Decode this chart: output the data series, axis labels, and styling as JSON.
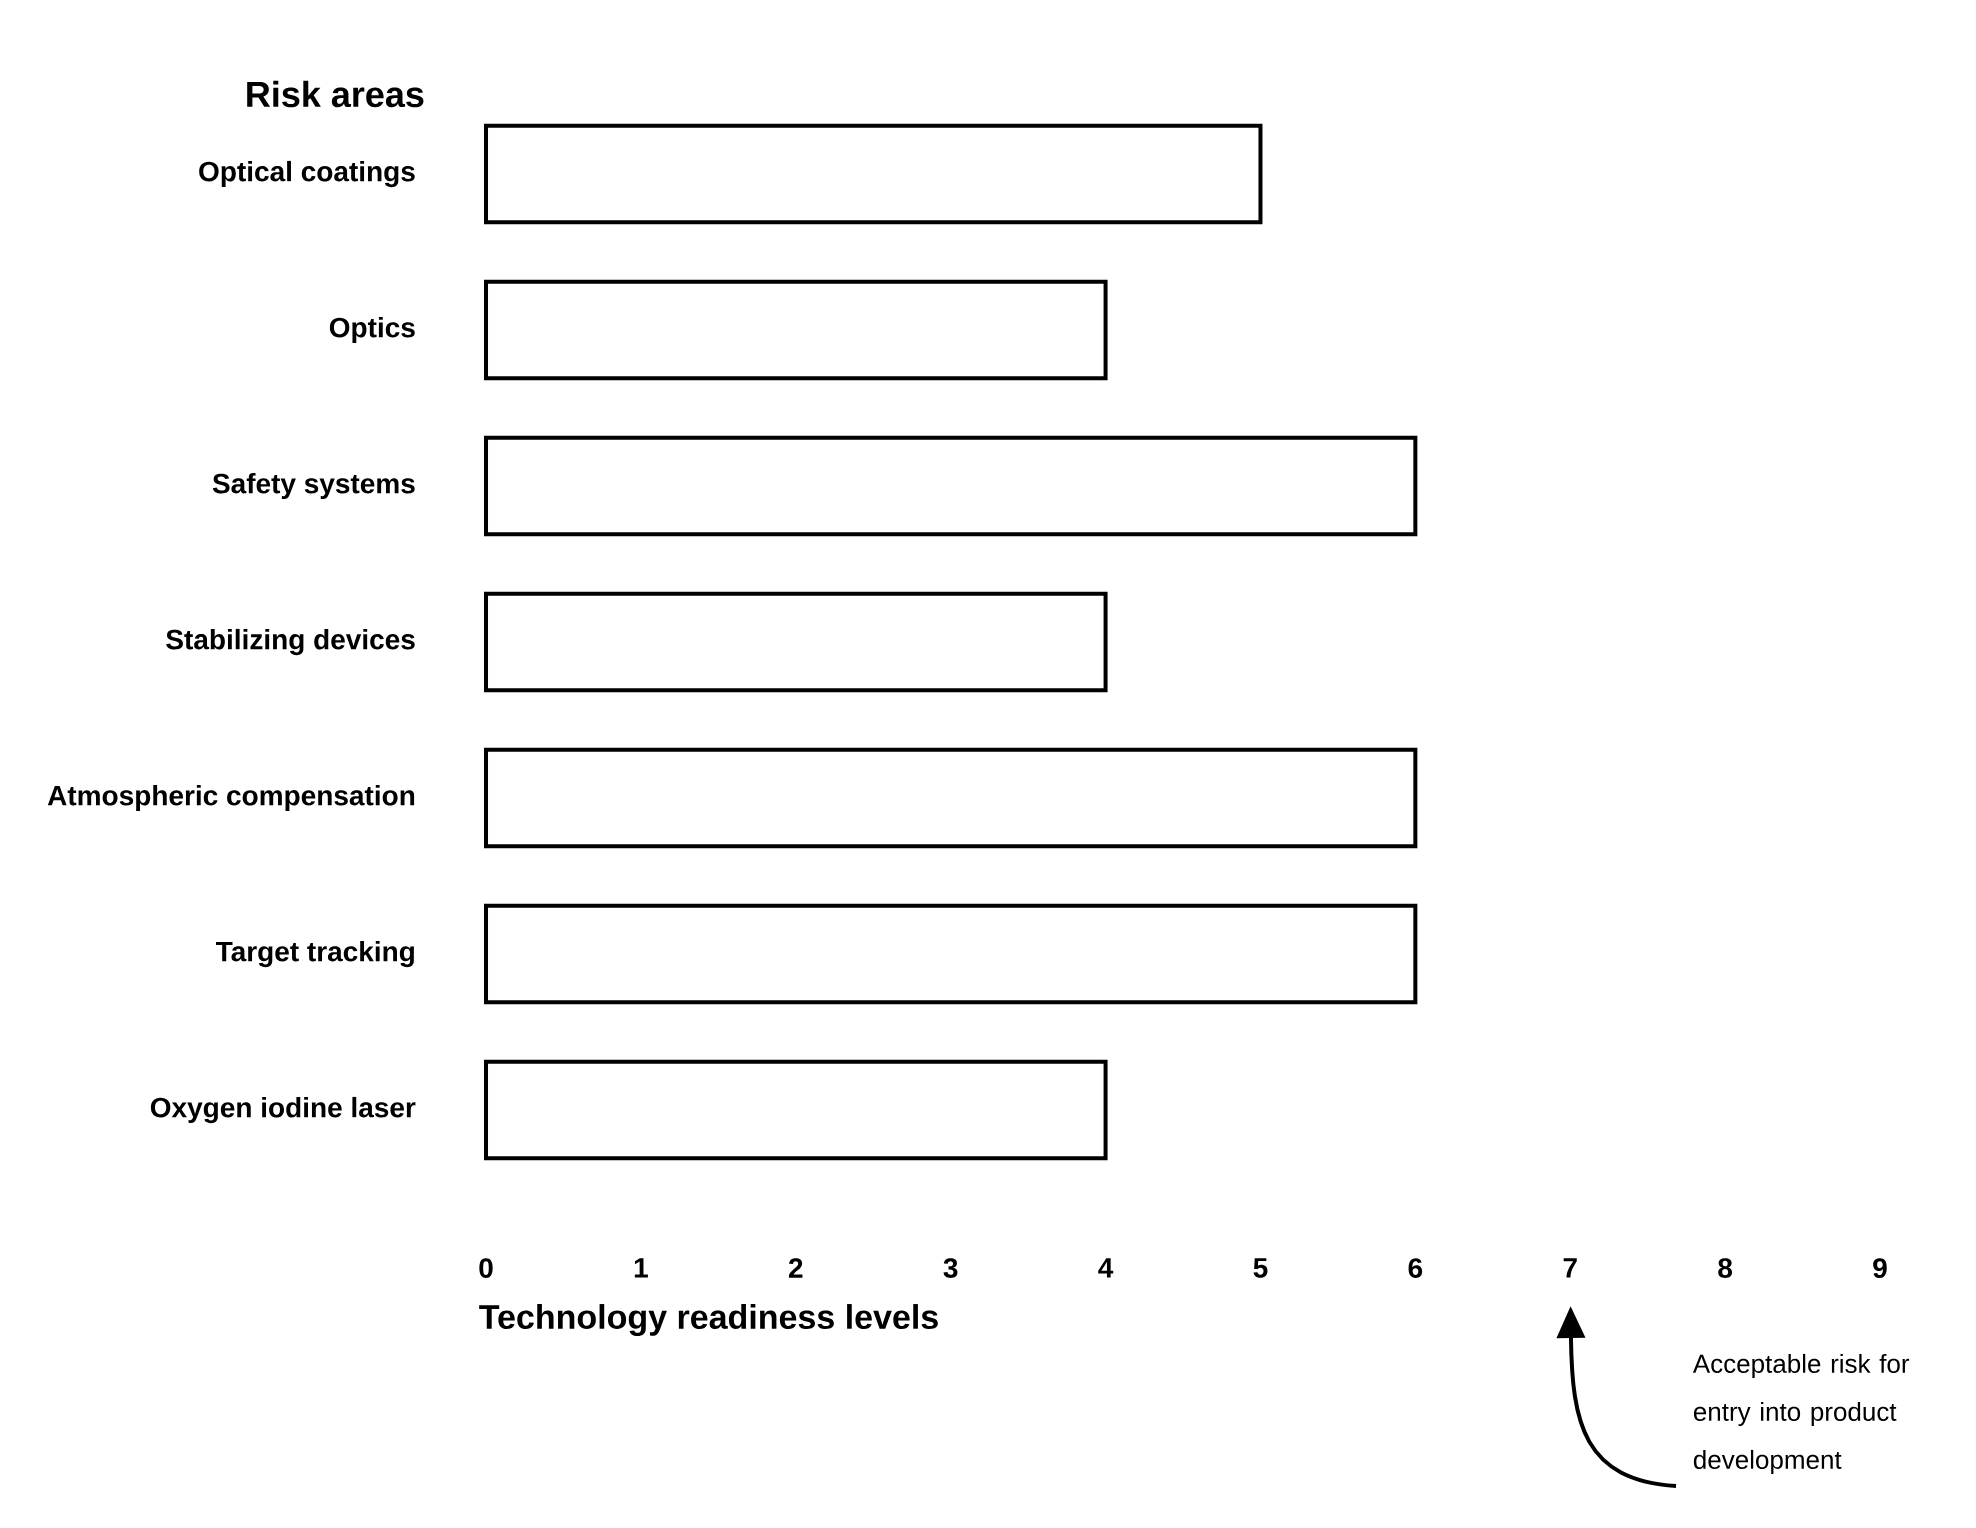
{
  "chart_data": {
    "type": "bar",
    "orientation": "horizontal",
    "ylabel": "Risk areas",
    "xlabel": "Technology readiness levels",
    "categories": [
      "Optical coatings",
      "Optics",
      "Safety systems",
      "Stabilizing devices",
      "Atmospheric compensation",
      "Target tracking",
      "Oxygen iodine laser"
    ],
    "values": [
      5,
      4,
      6,
      4,
      6,
      6,
      4
    ],
    "color": "#ffffff",
    "xlim": [
      0,
      9
    ],
    "xticks": [
      0,
      1,
      2,
      3,
      4,
      5,
      6,
      7,
      8,
      9
    ],
    "annotations": [
      "Acceptable risk for entry into product development"
    ]
  }
}
